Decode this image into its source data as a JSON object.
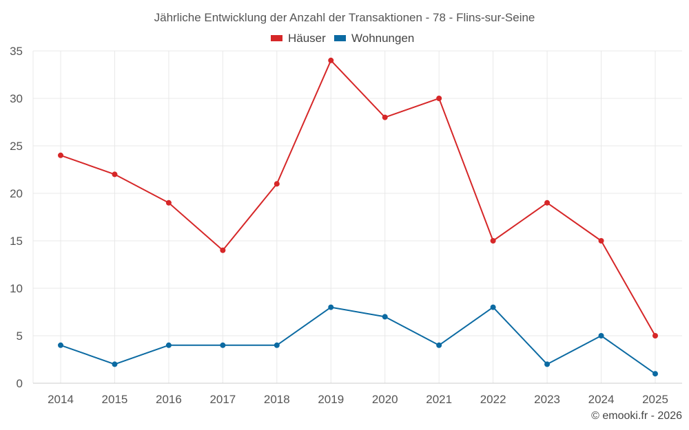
{
  "chart_data": {
    "type": "line",
    "title": "Jährliche Entwicklung der Anzahl der Transaktionen - 78 - Flins-sur-Seine",
    "categories": [
      "2014",
      "2015",
      "2016",
      "2017",
      "2018",
      "2019",
      "2020",
      "2021",
      "2022",
      "2023",
      "2024",
      "2025"
    ],
    "series": [
      {
        "name": "Häuser",
        "color": "#d62728",
        "values": [
          24,
          22,
          19,
          14,
          21,
          34,
          28,
          30,
          15,
          19,
          15,
          5
        ]
      },
      {
        "name": "Wohnungen",
        "color": "#0b6aa2",
        "values": [
          4,
          2,
          4,
          4,
          4,
          8,
          7,
          4,
          8,
          2,
          5,
          1
        ]
      }
    ],
    "ylim": [
      0,
      35
    ],
    "yticks": [
      "0",
      "5",
      "10",
      "15",
      "20",
      "25",
      "30",
      "35"
    ],
    "xlabel": "",
    "ylabel": "",
    "grid": true,
    "legend_position": "top-center"
  },
  "credit": "© emooki.fr - 2026"
}
